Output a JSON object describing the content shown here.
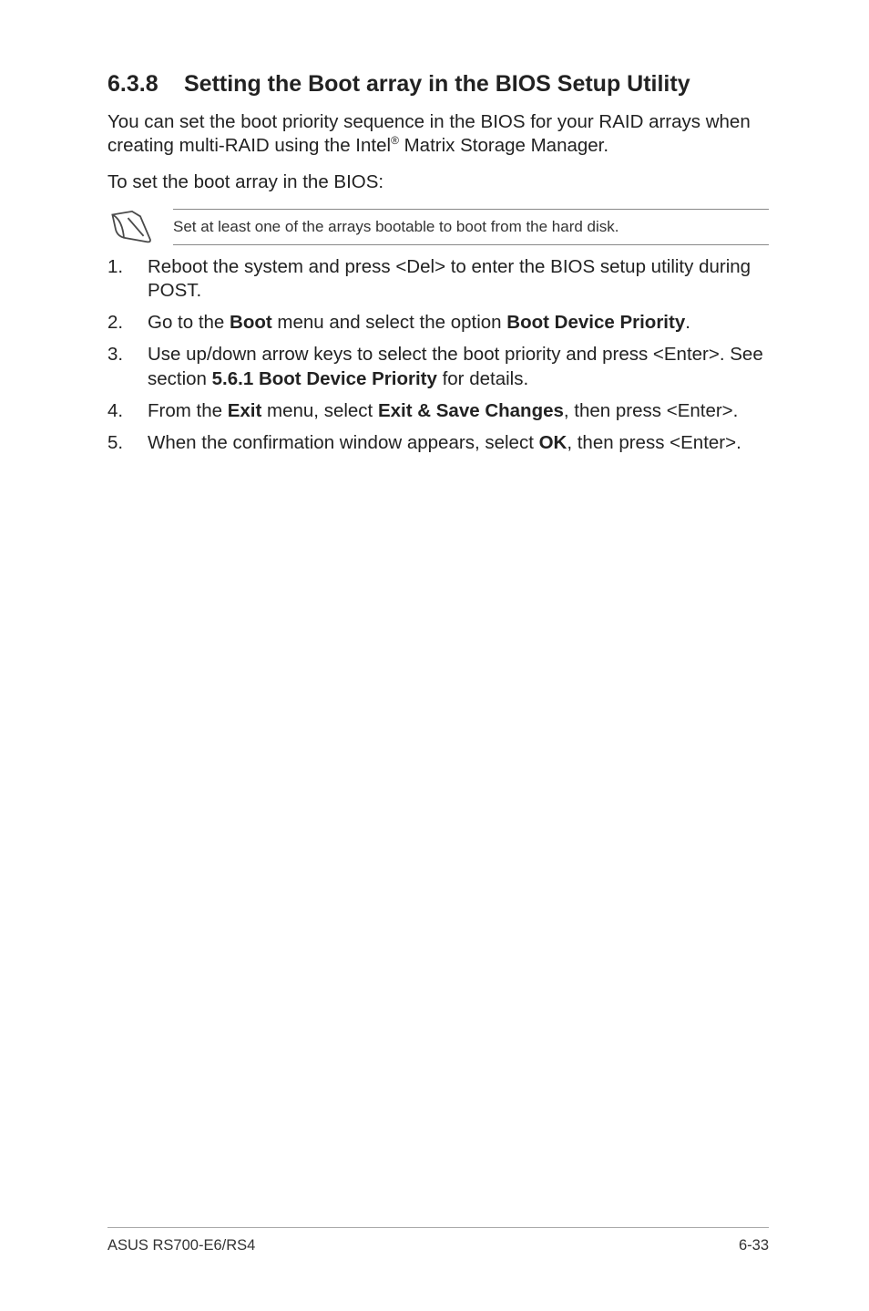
{
  "heading": {
    "number": "6.3.8",
    "title": "Setting the Boot array in the BIOS Setup Utility"
  },
  "intro": {
    "part1": "You can set the boot priority sequence in the BIOS for your RAID arrays when creating multi-RAID using the Intel",
    "sup": "®",
    "part2": " Matrix Storage Manager."
  },
  "lead": "To set the boot array in the BIOS:",
  "note": "Set at least one of the arrays bootable to boot from the hard disk.",
  "steps": [
    {
      "html": "Reboot the system and press <Del> to enter the BIOS setup utility during POST."
    },
    {
      "html": "Go to the <b>Boot</b> menu and select the option <b>Boot Device Priority</b>."
    },
    {
      "html": "Use up/down arrow keys to select the boot priority and press <Enter>. See section <b>5.6.1 Boot Device Priority</b> for details."
    },
    {
      "html": "From the <b>Exit</b> menu, select <b>Exit & Save Changes</b>, then press <Enter>."
    },
    {
      "html": "When the confirmation window appears, select <b>OK</b>, then press <Enter>."
    }
  ],
  "footer": {
    "left": "ASUS RS700-E6/RS4",
    "right": "6-33"
  },
  "colors": {
    "text": "#1a1a1a",
    "rule": "#888888",
    "footer_rule": "#a8a8a8",
    "icon_stroke": "#4a4a4a"
  }
}
